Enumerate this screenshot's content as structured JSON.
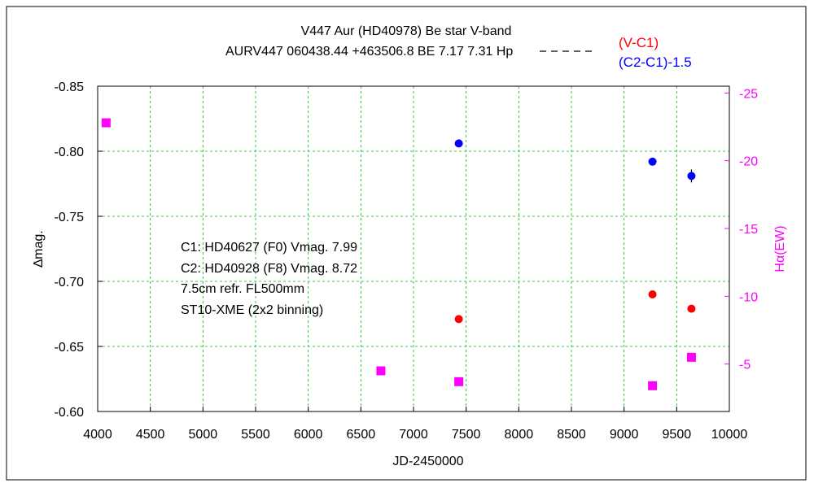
{
  "chart_data": {
    "type": "scatter",
    "title_line1": "V447 Aur (HD40978)    Be star    V-band",
    "title_line2": "AURV447 060438.44 +463506.8 BE 7.17 7.31 Hp",
    "xlabel": "JD-2450000",
    "ylabel_left": "∆mag.",
    "ylabel_right": "Hα(EW)",
    "xlim": [
      4000,
      10000
    ],
    "ylim_left": [
      -0.6,
      -0.85
    ],
    "ylim_right": [
      -1.5,
      -25.5
    ],
    "x_ticks": [
      "4000",
      "4500",
      "5000",
      "5500",
      "6000",
      "6500",
      "7000",
      "7500",
      "8000",
      "8500",
      "9000",
      "9500",
      "10000"
    ],
    "y_left_ticks": [
      "-0.85",
      "-0.80",
      "-0.75",
      "-0.70",
      "-0.65",
      "-0.60"
    ],
    "y_right_ticks": [
      "-25",
      "-20",
      "-15",
      "-10",
      "-5"
    ],
    "grid": true,
    "legend_position": "top-right",
    "annotation": [
      "C1: HD40627 (F0) Vmag. 7.99",
      "C2: HD40928 (F8) Vmag. 8.72",
      "7.5cm refr. FL500mm",
      "ST10-XME (2x2 binning)"
    ],
    "series": [
      {
        "name": "(V-C1)",
        "axis": "left",
        "color": "#ff0000",
        "marker": "circle",
        "x": [
          7430,
          9270,
          9640
        ],
        "y": [
          -0.671,
          -0.69,
          -0.679
        ]
      },
      {
        "name": "(C2-C1)-1.5",
        "axis": "left",
        "color": "#0000ff",
        "marker": "circle",
        "x": [
          7430,
          9270,
          9640
        ],
        "y": [
          -0.806,
          -0.792,
          -0.781
        ],
        "yerr": [
          0.0,
          0.002,
          0.005
        ]
      },
      {
        "name": "",
        "axis": "right",
        "color": "#ff00ff",
        "marker": "square",
        "x": [
          4080,
          6690,
          7430,
          9270,
          9640
        ],
        "y": [
          -22.8,
          -4.5,
          -3.7,
          -3.4,
          -5.5
        ]
      }
    ]
  }
}
